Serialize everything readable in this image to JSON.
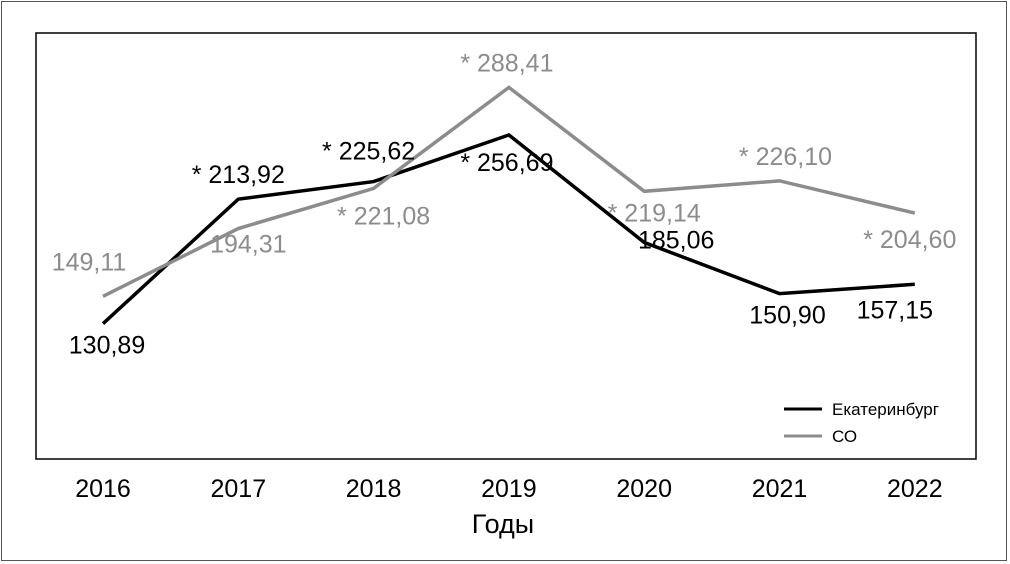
{
  "chart_data": {
    "type": "line",
    "categories": [
      "2016",
      "2017",
      "2018",
      "2019",
      "2020",
      "2021",
      "2022"
    ],
    "xlabel": "Годы",
    "ylabel": "",
    "ylim": [
      100,
      300
    ],
    "grid": false,
    "legend_position": "bottom-right",
    "series": [
      {
        "name": "Екатеринбург",
        "color": "#000000",
        "values": [
          130.89,
          213.92,
          225.62,
          256.69,
          185.06,
          150.9,
          157.15
        ],
        "labels": [
          "130,89",
          "* 213,92",
          "* 225,62",
          "* 256,69",
          "185,06",
          "150,90",
          "157,15"
        ]
      },
      {
        "name": "СО",
        "color": "#8c8c8c",
        "values": [
          149.11,
          194.31,
          221.08,
          288.41,
          219.14,
          226.1,
          204.6
        ],
        "labels": [
          "149,11",
          "194,31",
          "* 221,08",
          "* 288,41",
          "* 219,14",
          "* 226,10",
          "* 204,60"
        ]
      }
    ]
  }
}
